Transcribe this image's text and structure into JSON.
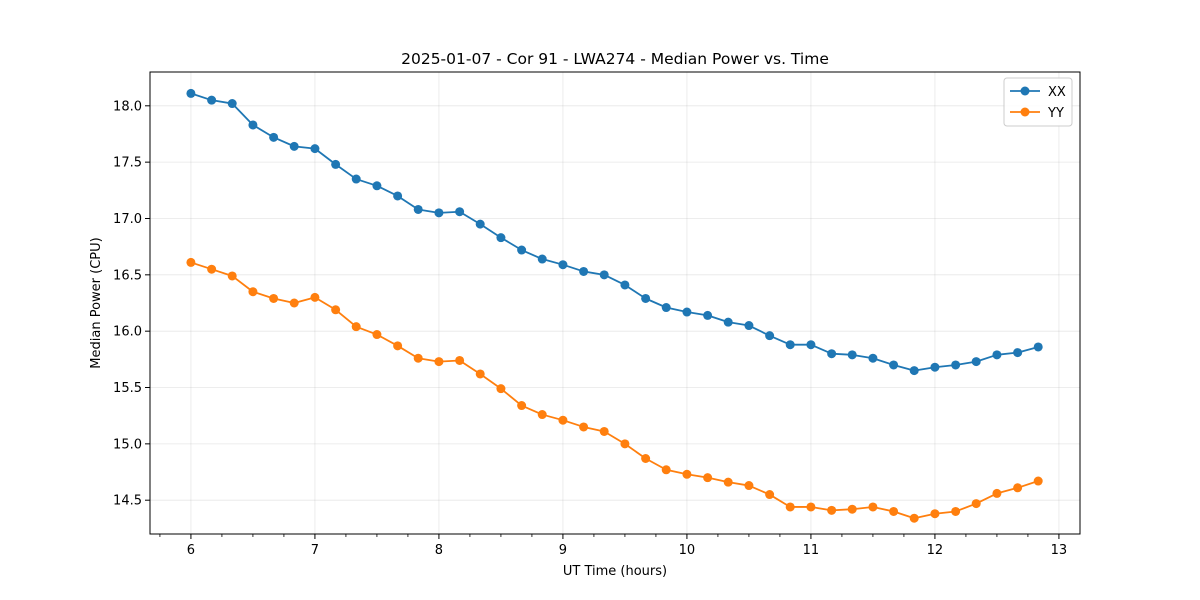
{
  "chart_data": {
    "type": "line",
    "title": "2025-01-07 - Cor 91 - LWA274 - Median Power vs. Time",
    "xlabel": "UT Time (hours)",
    "ylabel": "Median Power (CPU)",
    "xlim": [
      5.67,
      13.17
    ],
    "ylim": [
      14.2,
      18.3
    ],
    "x_ticks": [
      6,
      7,
      8,
      9,
      10,
      11,
      12,
      13
    ],
    "x_minor_step": 0.25,
    "y_ticks": [
      14.5,
      15.0,
      15.5,
      16.0,
      16.5,
      17.0,
      17.5,
      18.0
    ],
    "grid": true,
    "legend_position": "top-right",
    "x": [
      6.0,
      6.167,
      6.333,
      6.5,
      6.667,
      6.833,
      7.0,
      7.167,
      7.333,
      7.5,
      7.667,
      7.833,
      8.0,
      8.167,
      8.333,
      8.5,
      8.667,
      8.833,
      9.0,
      9.167,
      9.333,
      9.5,
      9.667,
      9.833,
      10.0,
      10.167,
      10.333,
      10.5,
      10.667,
      10.833,
      11.0,
      11.167,
      11.333,
      11.5,
      11.667,
      11.833,
      12.0,
      12.167,
      12.333,
      12.5,
      12.667,
      12.833
    ],
    "series": [
      {
        "name": "XX",
        "color": "#1f77b4",
        "values": [
          18.11,
          18.05,
          18.02,
          17.83,
          17.72,
          17.64,
          17.62,
          17.48,
          17.35,
          17.29,
          17.2,
          17.08,
          17.05,
          17.06,
          16.95,
          16.83,
          16.72,
          16.64,
          16.59,
          16.53,
          16.5,
          16.41,
          16.29,
          16.21,
          16.17,
          16.14,
          16.08,
          16.05,
          15.96,
          15.88,
          15.88,
          15.8,
          15.79,
          15.76,
          15.7,
          15.65,
          15.68,
          15.7,
          15.73,
          15.79,
          15.81,
          15.86
        ]
      },
      {
        "name": "YY",
        "color": "#ff7f0e",
        "values": [
          16.61,
          16.55,
          16.49,
          16.35,
          16.29,
          16.25,
          16.3,
          16.19,
          16.04,
          15.97,
          15.87,
          15.76,
          15.73,
          15.74,
          15.62,
          15.49,
          15.34,
          15.26,
          15.21,
          15.15,
          15.11,
          15.0,
          14.87,
          14.77,
          14.73,
          14.7,
          14.66,
          14.63,
          14.55,
          14.44,
          14.44,
          14.41,
          14.42,
          14.44,
          14.4,
          14.34,
          14.38,
          14.4,
          14.47,
          14.56,
          14.61,
          14.67
        ]
      }
    ]
  }
}
